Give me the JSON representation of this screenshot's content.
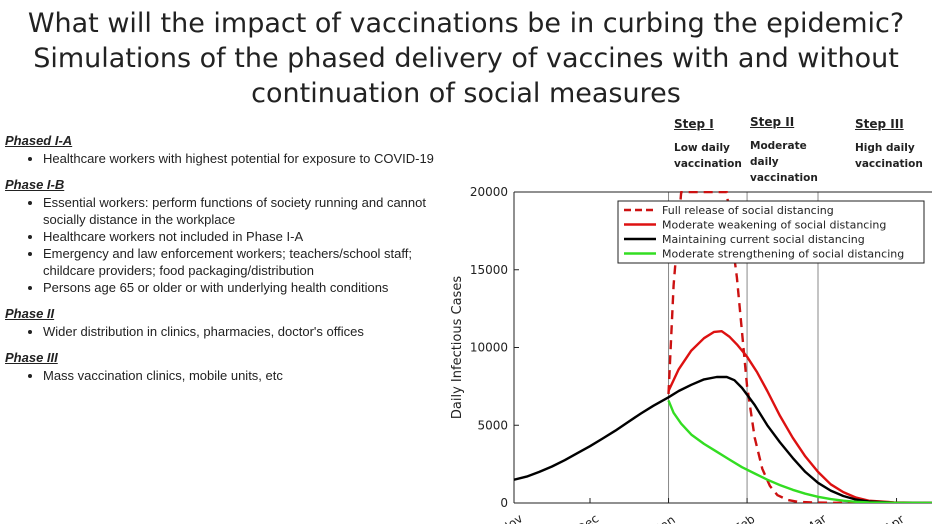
{
  "title": {
    "line1": "What will the impact of vaccinations be in curbing the epidemic?",
    "line2": "Simulations of the phased delivery of vaccines with and without",
    "line3": "continuation of social measures"
  },
  "phases": [
    {
      "title": "Phased I-A",
      "items": [
        "Healthcare workers with highest potential for exposure to COVID-19"
      ]
    },
    {
      "title": "Phase I-B",
      "items": [
        "Essential workers: perform functions of society running and cannot socially distance in the workplace",
        "Healthcare workers not included in Phase I-A",
        "Emergency and law enforcement workers; teachers/school staff; childcare providers; food packaging/distribution",
        "Persons age 65 or older or with underlying health conditions"
      ]
    },
    {
      "title": "Phase II",
      "items": [
        "Wider distribution in clinics, pharmacies, doctor's offices"
      ]
    },
    {
      "title": "Phase III",
      "items": [
        "Mass vaccination clinics, mobile units, etc"
      ]
    }
  ],
  "steps": [
    {
      "name": "Step I",
      "desc": [
        "Low daily",
        "vaccination"
      ]
    },
    {
      "name": "Step II",
      "desc": [
        "Moderate",
        "daily",
        "vaccination"
      ]
    },
    {
      "name": "Step III",
      "desc": [
        "High daily",
        "vaccination"
      ]
    }
  ],
  "chart_data": {
    "type": "line",
    "ylabel": "Daily Infectious Cases",
    "xlabel": "",
    "ylim": [
      0,
      20000
    ],
    "yticks": [
      0,
      5000,
      10000,
      15000,
      20000
    ],
    "xlim": [
      0,
      165
    ],
    "xticks": [
      {
        "x": 0,
        "label": "Nov"
      },
      {
        "x": 30,
        "label": "Dec"
      },
      {
        "x": 61,
        "label": "Jan"
      },
      {
        "x": 92,
        "label": "Feb"
      },
      {
        "x": 120,
        "label": "Mar"
      },
      {
        "x": 151,
        "label": "Apr"
      }
    ],
    "step_lines_x": [
      61,
      92,
      120
    ],
    "legend_position": "top-right",
    "series": [
      {
        "name": "Full release of social distancing",
        "color": "#cc1111",
        "dash": true,
        "x": [
          61,
          63,
          66,
          70,
          75,
          80,
          84,
          86,
          88,
          90,
          92,
          95,
          98,
          101,
          104,
          108,
          112,
          118,
          125,
          135,
          150,
          165
        ],
        "y": [
          7000,
          14000,
          20000,
          20000,
          20000,
          20000,
          20000,
          17000,
          14500,
          11000,
          7500,
          4200,
          2200,
          1100,
          500,
          200,
          80,
          30,
          10,
          5,
          0,
          0
        ]
      },
      {
        "name": "Moderate weakening of social distancing",
        "color": "#dd1111",
        "x": [
          61,
          65,
          70,
          75,
          79,
          82,
          85,
          88,
          92,
          96,
          100,
          105,
          110,
          115,
          120,
          125,
          130,
          135,
          140,
          150,
          165
        ],
        "y": [
          7200,
          8600,
          9800,
          10600,
          11000,
          11050,
          10700,
          10200,
          9400,
          8400,
          7200,
          5600,
          4200,
          3000,
          2000,
          1200,
          700,
          350,
          150,
          40,
          0
        ]
      },
      {
        "name": "Maintaining current social distancing",
        "color": "#000000",
        "x": [
          0,
          5,
          10,
          15,
          20,
          25,
          30,
          35,
          40,
          45,
          50,
          55,
          61,
          65,
          70,
          75,
          80,
          84,
          87,
          90,
          95,
          100,
          105,
          110,
          115,
          120,
          125,
          130,
          135,
          140,
          150,
          165
        ],
        "y": [
          1500,
          1700,
          2000,
          2350,
          2750,
          3200,
          3650,
          4150,
          4650,
          5200,
          5750,
          6250,
          6800,
          7200,
          7600,
          7950,
          8100,
          8100,
          7900,
          7400,
          6300,
          5000,
          3900,
          2900,
          2000,
          1300,
          800,
          450,
          220,
          100,
          20,
          0
        ]
      },
      {
        "name": "Moderate strengthening of social distancing",
        "color": "#33dd22",
        "x": [
          61,
          63,
          66,
          70,
          75,
          80,
          85,
          90,
          95,
          100,
          105,
          110,
          115,
          120,
          125,
          130,
          135,
          140,
          150,
          165
        ],
        "y": [
          6600,
          5800,
          5100,
          4400,
          3800,
          3300,
          2800,
          2300,
          1900,
          1500,
          1150,
          850,
          600,
          400,
          250,
          150,
          80,
          40,
          10,
          0
        ]
      }
    ]
  }
}
